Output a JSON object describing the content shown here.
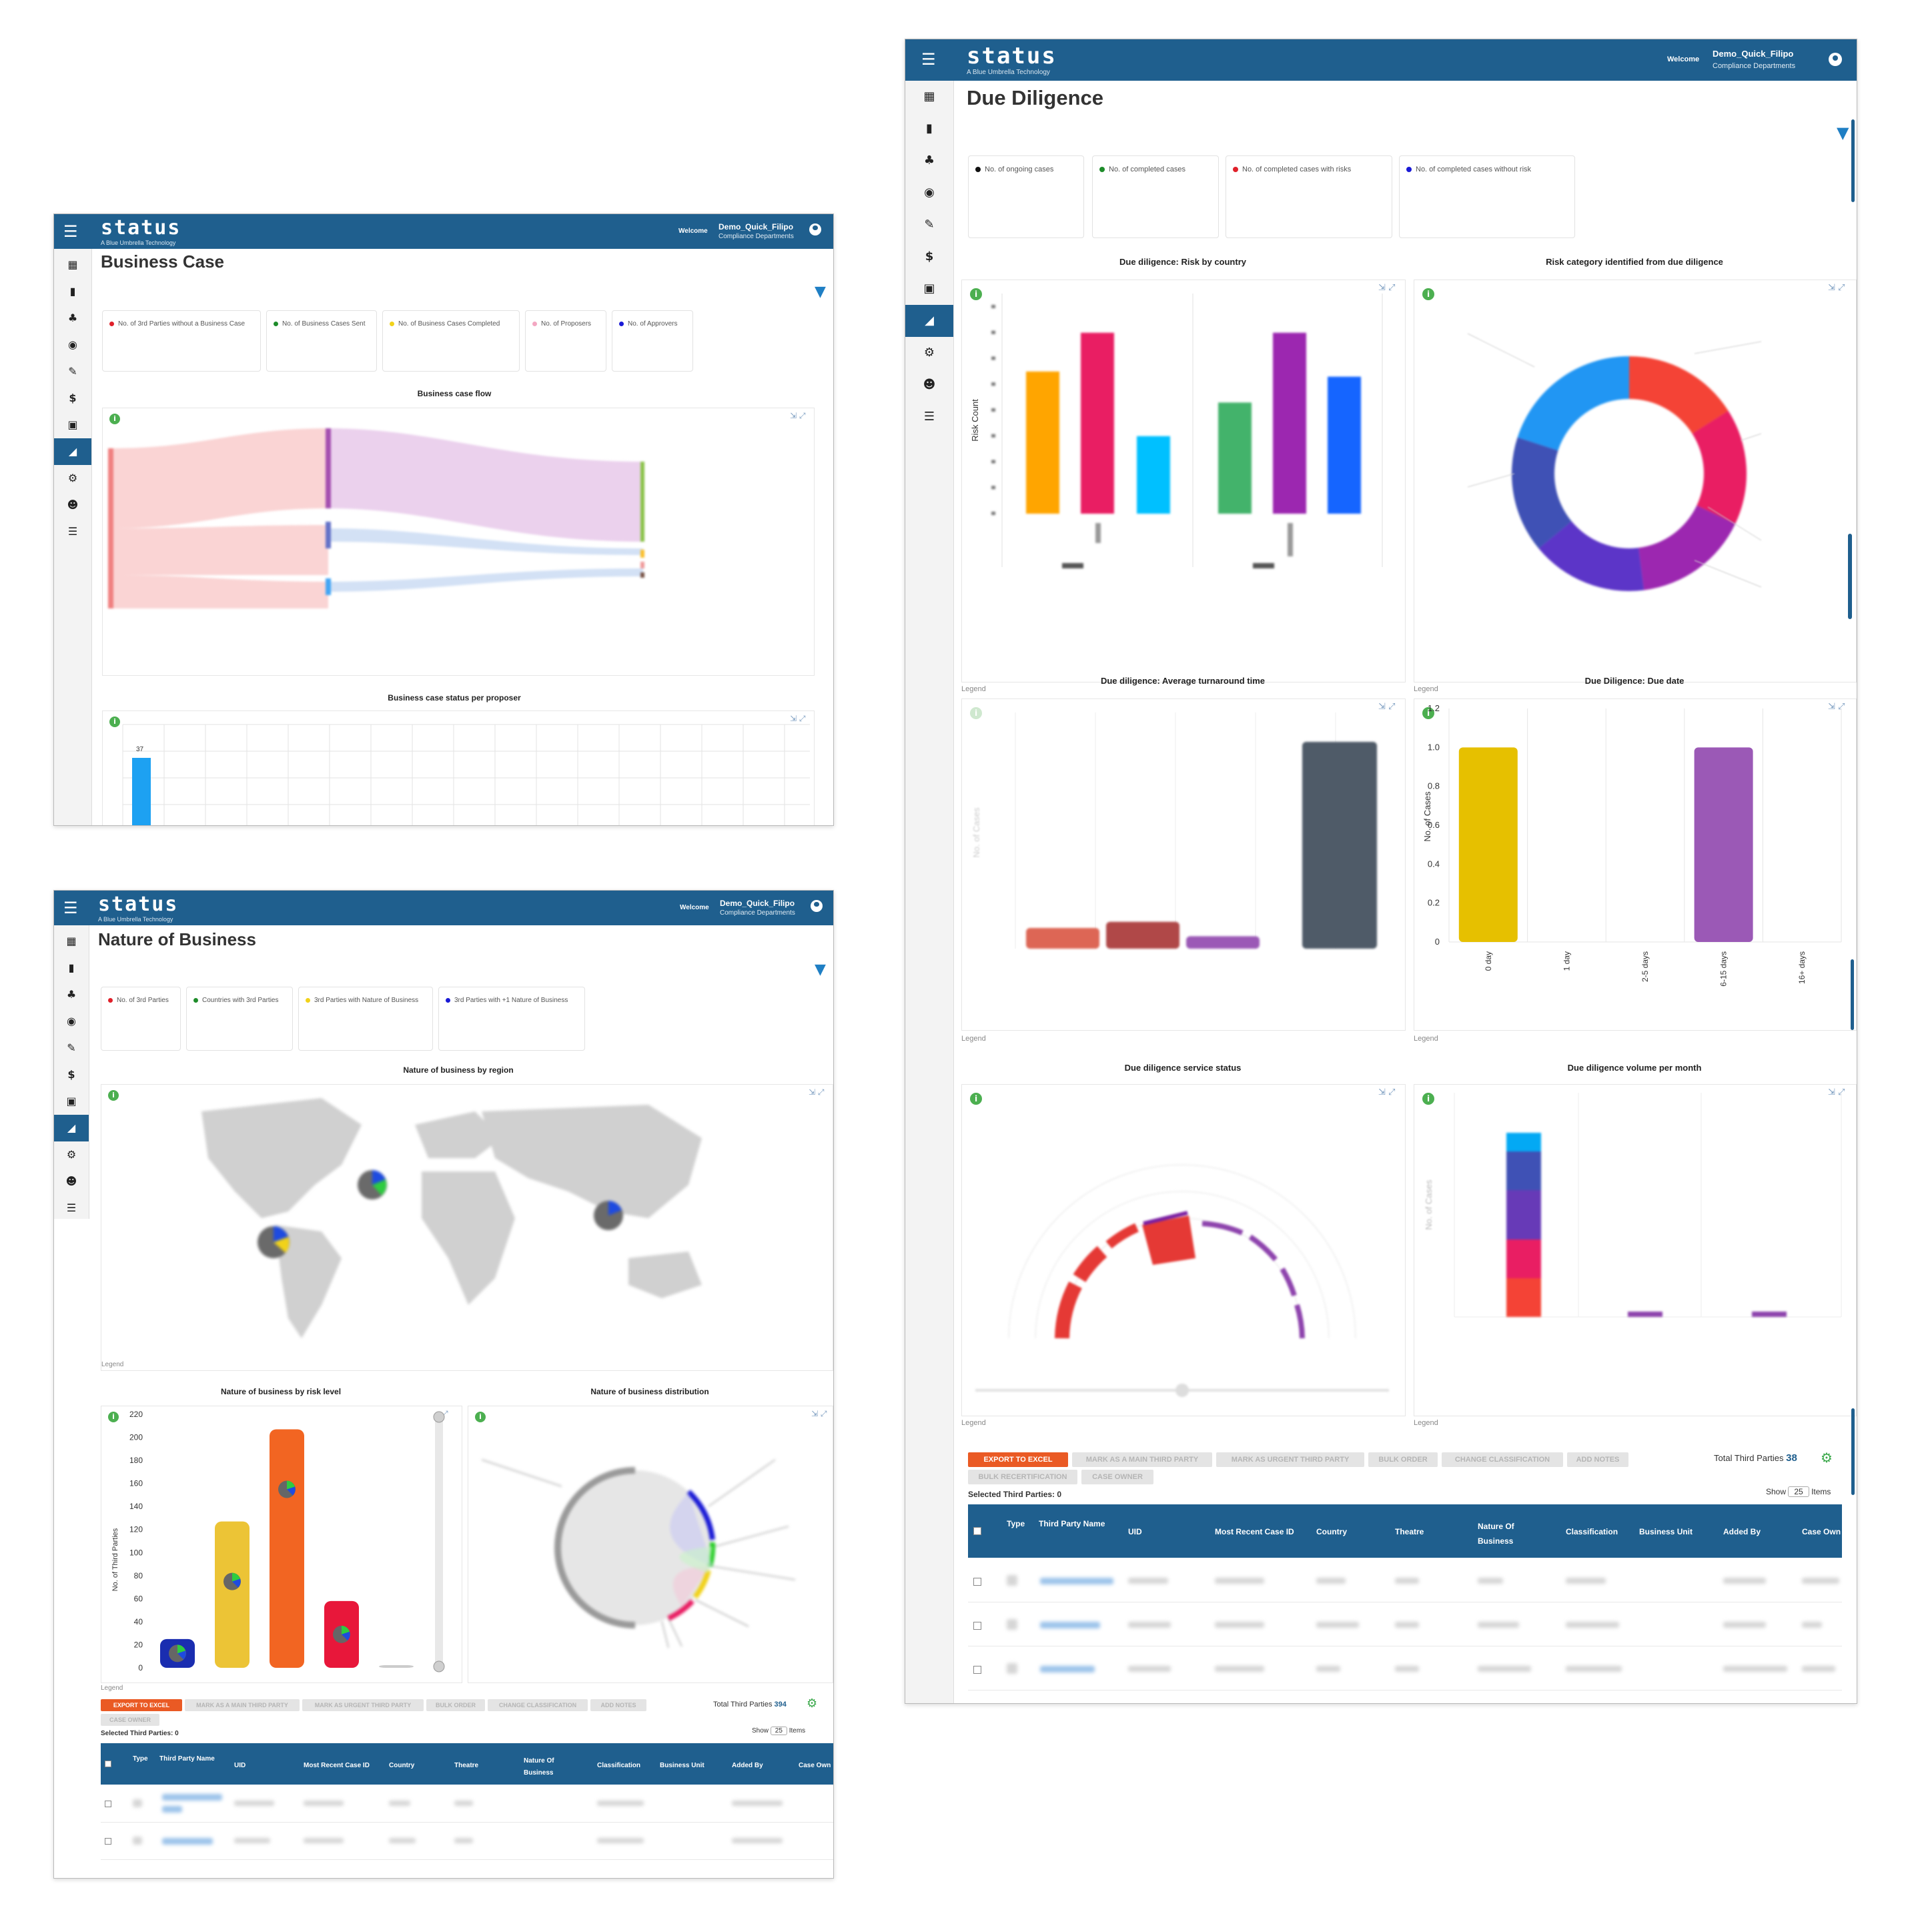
{
  "app": {
    "logo": "status",
    "logo_tagline": "A Blue Umbrella Technology",
    "welcome": "Welcome",
    "user_name": "Demo_Quick_Filipo",
    "user_dept": "Compliance Departments",
    "menu_icon": "hamburger-icon",
    "sidebar_icons": [
      "table-icon",
      "building-icon",
      "tree-icon",
      "eye-icon",
      "signature-icon",
      "dollar-icon",
      "excel-icon",
      "chart-icon",
      "gear-icon",
      "user-check-icon",
      "checklist-icon"
    ]
  },
  "colors": {
    "brand": "#1f5f8e",
    "export": "#ea5a24",
    "accent": "#1f7fc4"
  },
  "business_case": {
    "page_title": "Business Case",
    "kpis": [
      {
        "label": "No. of 3rd Parties without a Business Case",
        "color": "#e0202a"
      },
      {
        "label": "No. of Business Cases Sent",
        "color": "#1e8c2a"
      },
      {
        "label": "No. of Business Cases Completed",
        "color": "#f1d21a"
      },
      {
        "label": "No. of Proposers",
        "color": "#f3a7c2"
      },
      {
        "label": "No. of Approvers",
        "color": "#1a1ad6"
      }
    ],
    "chart1_title": "Business case flow",
    "chart2_title": "Business case status per proposer",
    "chart2_value_label": "37"
  },
  "nature": {
    "page_title": "Nature of Business",
    "kpis": [
      {
        "label": "No. of 3rd Parties",
        "color": "#e0202a"
      },
      {
        "label": "Countries with 3rd Parties",
        "color": "#1e8c2a"
      },
      {
        "label": "3rd Parties with Nature of Business",
        "color": "#f1d21a"
      },
      {
        "label": "3rd Parties with +1 Nature of Business",
        "color": "#1a1ad6"
      }
    ],
    "map_title": "Nature of business by region",
    "risk_title": "Nature of business by risk level",
    "dist_title": "Nature of business distribution",
    "legend": "Legend",
    "risk_ylabel": "No. of Third Parties",
    "buttons": [
      "EXPORT TO EXCEL",
      "MARK AS A MAIN THIRD PARTY",
      "MARK AS URGENT THIRD PARTY",
      "BULK ORDER",
      "CHANGE CLASSIFICATION",
      "ADD NOTES",
      "CASE OWNER"
    ],
    "total_label": "Total Third Parties",
    "total_value": "394",
    "selected": "Selected Third Parties: 0",
    "show": "Show",
    "show_value": "25",
    "items": "Items",
    "columns": [
      "Type",
      "Third Party Name",
      "UID",
      "Most Recent Case ID",
      "Country",
      "Theatre",
      "Nature Of Business",
      "Classification",
      "Business Unit",
      "Added By",
      "Case Own"
    ]
  },
  "due": {
    "page_title": "Due Diligence",
    "kpis": [
      {
        "label": "No. of ongoing cases",
        "color": "#111111"
      },
      {
        "label": "No. of completed cases",
        "color": "#1e8c2a"
      },
      {
        "label": "No. of completed cases with risks",
        "color": "#e0202a"
      },
      {
        "label": "No. of completed cases without risk",
        "color": "#1a1ad6"
      }
    ],
    "c1_title": "Due diligence: Risk by country",
    "c1_ylabel": "Risk Count",
    "c2_title": "Risk category identified from due diligence",
    "c3_title": "Due diligence: Average turnaround time",
    "c3_ylabel": "No. of Cases",
    "c4_title": "Due Diligence: Due date",
    "c5_title": "Due diligence service status",
    "c6_title": "Due diligence volume per month",
    "c6_ylabel": "No. of Cases",
    "legend": "Legend",
    "buttons": [
      "EXPORT TO EXCEL",
      "MARK AS A MAIN THIRD PARTY",
      "MARK AS URGENT THIRD PARTY",
      "BULK ORDER",
      "CHANGE CLASSIFICATION",
      "ADD NOTES",
      "BULK RECERTIFICATION",
      "CASE OWNER"
    ],
    "total_label": "Total Third Parties",
    "total_value": "38",
    "selected": "Selected Third Parties: 0",
    "show": "Show",
    "show_value": "25",
    "items": "Items",
    "columns": [
      "Type",
      "Third Party Name",
      "UID",
      "Most Recent Case ID",
      "Country",
      "Theatre",
      "Nature Of Business",
      "Classification",
      "Business Unit",
      "Added By",
      "Case Own"
    ]
  },
  "chart_data": [
    {
      "type": "bar",
      "title": "Nature of business by risk level",
      "ylabel": "No. of Third Parties",
      "ylim": [
        0,
        220
      ],
      "yticks": [
        "0",
        "20",
        "40",
        "60",
        "80",
        "100",
        "120",
        "140",
        "160",
        "180",
        "200",
        "220"
      ],
      "values": [
        25,
        127,
        207,
        58,
        2
      ],
      "colors": [
        "#1a2db0",
        "#ecc436",
        "#f26522",
        "#e8173a",
        "#cccccc"
      ]
    },
    {
      "type": "bar",
      "title": "Due Diligence: Due date",
      "ylabel": "No. of Cases",
      "ylim": [
        0,
        1.2
      ],
      "yticks": [
        "0",
        "0.2",
        "0.4",
        "0.6",
        "0.8",
        "1.0",
        "1.2"
      ],
      "categories": [
        "0 day",
        "1 day",
        "2-5 days",
        "6-15 days",
        "16+ days"
      ],
      "values": [
        1,
        0,
        0,
        1,
        0
      ],
      "colors": [
        "#e6c000",
        "#9b59b6",
        "#9b59b6",
        "#9b59b6",
        "#9b59b6"
      ]
    },
    {
      "type": "bar",
      "title": "Due diligence: Risk by country",
      "ylabel": "Risk Count",
      "ylim": [
        0,
        8
      ],
      "values": [
        5.5,
        7,
        3,
        4.3,
        7,
        5.3
      ],
      "colors": [
        "#ffa500",
        "#e91e63",
        "#00c0ff",
        "#43b36b",
        "#9c27b0",
        "#1565ff"
      ]
    },
    {
      "type": "bar",
      "title": "Due diligence: Average turnaround time",
      "values": [
        1,
        1.3,
        0.6,
        10
      ],
      "colors": [
        "#dd6655",
        "#b04848",
        "#9b59b6",
        "#4f5b68"
      ]
    },
    {
      "type": "pie",
      "title": "Risk category identified from due diligence",
      "values": [
        16,
        16,
        16,
        16,
        16,
        20
      ],
      "colors": [
        "#f44336",
        "#e91e63",
        "#9c27b0",
        "#5c35c8",
        "#3f51b5",
        "#2196f3"
      ]
    }
  ]
}
